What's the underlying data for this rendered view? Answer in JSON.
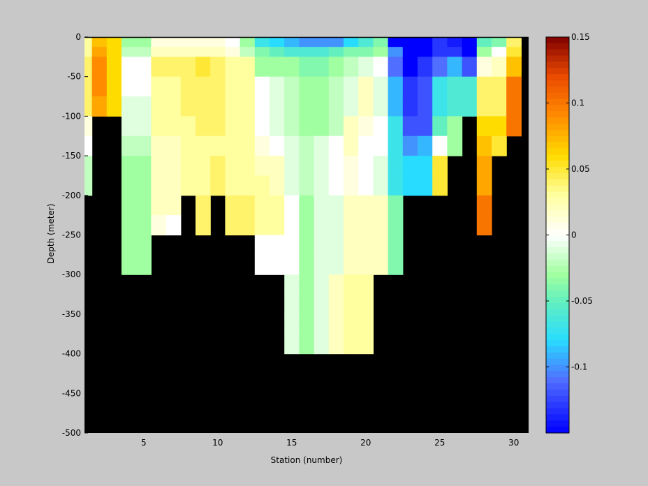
{
  "chart_data": {
    "type": "heatmap",
    "xlabel": "Station (number)",
    "ylabel": "Depth (meter)",
    "xlim": [
      1,
      31
    ],
    "ylim": [
      -500,
      0
    ],
    "xticks": [
      5,
      10,
      15,
      20,
      25,
      30
    ],
    "yticks": [
      0,
      -50,
      -100,
      -150,
      -200,
      -250,
      -300,
      -350,
      -400,
      -450,
      -500
    ],
    "colorbar": {
      "range": [
        -0.15,
        0.15
      ],
      "ticks": [
        0.15,
        0.1,
        0.05,
        0,
        -0.05,
        -0.1
      ],
      "tick_labels": [
        "0.15",
        "0.1",
        "0.05",
        "0",
        "-0.05",
        "-0.1"
      ],
      "colormap": "jet-with-white-center"
    },
    "mask_color": "#000000",
    "stations": [
      2,
      3,
      4,
      5,
      6,
      7,
      8,
      9,
      10,
      11,
      12,
      13,
      14,
      15,
      16,
      17,
      18,
      19,
      20,
      21,
      22,
      23,
      24,
      25,
      26,
      27,
      28,
      29,
      30
    ],
    "depth_bins": [
      0,
      -12.5,
      -25,
      -50,
      -75,
      -100,
      -125,
      -150,
      -175,
      -200,
      -225,
      -250,
      -275,
      -300,
      -325,
      -350,
      -375,
      -400,
      -425,
      -450,
      -475,
      -500
    ],
    "columns": [
      {
        "station": 1,
        "bottom": -200,
        "values": [
          0.03,
          0.03,
          0.04,
          0.04,
          0.04,
          0.01,
          0.0,
          -0.02,
          -0.02
        ]
      },
      {
        "station": 2,
        "bottom": -100,
        "values": [
          0.07,
          0.08,
          0.09,
          0.09,
          0.08
        ]
      },
      {
        "station": 3,
        "bottom": -100,
        "values": [
          0.06,
          0.06,
          0.06,
          0.06,
          0.06
        ]
      },
      {
        "station": 4,
        "bottom": -300,
        "values": [
          -0.03,
          -0.02,
          0.0,
          0.0,
          -0.01,
          -0.01,
          -0.02,
          -0.03,
          -0.03,
          -0.03,
          -0.03,
          -0.03,
          -0.03
        ]
      },
      {
        "station": 5,
        "bottom": -300,
        "values": [
          -0.03,
          -0.02,
          0.0,
          0.0,
          -0.01,
          -0.01,
          -0.02,
          -0.03,
          -0.03,
          -0.03,
          -0.03,
          -0.03,
          -0.03
        ]
      },
      {
        "station": 6,
        "bottom": -250,
        "values": [
          0.01,
          0.02,
          0.04,
          0.03,
          0.03,
          0.03,
          0.02,
          0.02,
          0.02,
          0.02,
          0.01
        ]
      },
      {
        "station": 7,
        "bottom": -250,
        "values": [
          0.01,
          0.02,
          0.04,
          0.03,
          0.03,
          0.03,
          0.02,
          0.02,
          0.02,
          0.02,
          0.0
        ]
      },
      {
        "station": 8,
        "bottom": -200,
        "values": [
          0.01,
          0.02,
          0.04,
          0.04,
          0.04,
          0.03,
          0.03,
          0.03,
          0.03
        ]
      },
      {
        "station": 9,
        "bottom": -250,
        "values": [
          0.01,
          0.02,
          0.05,
          0.04,
          0.04,
          0.04,
          0.03,
          0.03,
          0.03,
          0.04,
          0.04
        ]
      },
      {
        "station": 10,
        "bottom": -200,
        "values": [
          0.01,
          0.02,
          0.04,
          0.04,
          0.04,
          0.04,
          0.03,
          0.04,
          0.04
        ]
      },
      {
        "station": 11,
        "bottom": -250,
        "values": [
          0.0,
          0.01,
          0.03,
          0.03,
          0.03,
          0.03,
          0.03,
          0.03,
          0.03,
          0.04,
          0.04
        ]
      },
      {
        "station": 12,
        "bottom": -250,
        "values": [
          -0.03,
          -0.02,
          0.03,
          0.03,
          0.03,
          0.03,
          0.03,
          0.03,
          0.03,
          0.04,
          0.04
        ]
      },
      {
        "station": 13,
        "bottom": -300,
        "values": [
          -0.07,
          -0.04,
          -0.03,
          0.0,
          0.0,
          0.0,
          0.01,
          0.02,
          0.03,
          0.03,
          0.03,
          0.0,
          0.0
        ]
      },
      {
        "station": 14,
        "bottom": -300,
        "values": [
          -0.08,
          -0.05,
          -0.03,
          -0.01,
          -0.01,
          -0.01,
          0.0,
          0.02,
          0.02,
          0.03,
          0.03,
          0.0,
          0.0
        ]
      },
      {
        "station": 15,
        "bottom": -400,
        "values": [
          -0.09,
          -0.06,
          -0.03,
          -0.02,
          -0.02,
          -0.02,
          -0.01,
          -0.01,
          -0.01,
          0.0,
          0.0,
          0.0,
          0.0,
          -0.01,
          -0.01,
          -0.01,
          -0.01
        ]
      },
      {
        "station": 16,
        "bottom": -400,
        "values": [
          -0.1,
          -0.06,
          -0.04,
          -0.03,
          -0.03,
          -0.03,
          -0.02,
          -0.02,
          -0.02,
          -0.03,
          -0.03,
          -0.03,
          -0.03,
          -0.03,
          -0.03,
          -0.03,
          -0.03
        ]
      },
      {
        "station": 17,
        "bottom": -400,
        "values": [
          -0.1,
          -0.06,
          -0.04,
          -0.03,
          -0.03,
          -0.03,
          -0.01,
          -0.01,
          -0.01,
          -0.01,
          -0.01,
          -0.01,
          -0.01,
          -0.01,
          -0.01,
          -0.01,
          -0.01
        ]
      },
      {
        "station": 18,
        "bottom": -400,
        "values": [
          -0.1,
          -0.05,
          -0.03,
          -0.02,
          -0.02,
          -0.02,
          0.0,
          0.0,
          0.0,
          -0.01,
          -0.01,
          -0.01,
          -0.01,
          0.02,
          0.02,
          0.02,
          0.02
        ]
      },
      {
        "station": 19,
        "bottom": -400,
        "values": [
          -0.08,
          -0.04,
          -0.02,
          -0.01,
          -0.01,
          0.02,
          0.02,
          0.01,
          0.01,
          0.02,
          0.02,
          0.02,
          0.02,
          0.03,
          0.03,
          0.03,
          0.03
        ]
      },
      {
        "station": 20,
        "bottom": -400,
        "values": [
          -0.06,
          -0.04,
          -0.01,
          0.02,
          0.02,
          0.01,
          0.0,
          0.0,
          0.0,
          0.02,
          0.02,
          0.02,
          0.02,
          0.03,
          0.03,
          0.03,
          0.03
        ]
      },
      {
        "station": 21,
        "bottom": -300,
        "values": [
          -0.04,
          -0.03,
          0.0,
          -0.01,
          -0.01,
          0.0,
          0.0,
          -0.01,
          -0.01,
          0.02,
          0.02,
          0.02,
          0.02
        ]
      },
      {
        "station": 22,
        "bottom": -300,
        "values": [
          -0.15,
          -0.1,
          -0.11,
          -0.09,
          -0.09,
          -0.07,
          -0.07,
          -0.07,
          -0.07,
          -0.04,
          -0.04,
          -0.04,
          -0.04
        ]
      },
      {
        "station": 23,
        "bottom": -200,
        "values": [
          -0.15,
          -0.15,
          -0.15,
          -0.13,
          -0.13,
          -0.12,
          -0.1,
          -0.08,
          -0.08
        ]
      },
      {
        "station": 24,
        "bottom": -200,
        "values": [
          -0.15,
          -0.15,
          -0.13,
          -0.12,
          -0.12,
          -0.12,
          -0.09,
          -0.08,
          -0.08
        ]
      },
      {
        "station": 25,
        "bottom": -200,
        "values": [
          -0.13,
          -0.13,
          -0.11,
          -0.07,
          -0.07,
          -0.05,
          0.0,
          0.05,
          0.05
        ]
      },
      {
        "station": 26,
        "bottom": -150,
        "values": [
          -0.14,
          -0.13,
          -0.09,
          -0.06,
          -0.06,
          -0.03,
          -0.03
        ]
      },
      {
        "station": 27,
        "bottom": -100,
        "values": [
          -0.15,
          -0.15,
          -0.12,
          -0.06,
          -0.06
        ]
      },
      {
        "station": 28,
        "bottom": -250,
        "values": [
          -0.05,
          -0.03,
          0.01,
          0.04,
          0.04,
          0.06,
          0.07,
          0.08,
          0.08,
          0.1,
          0.1
        ]
      },
      {
        "station": 29,
        "bottom": -150,
        "values": [
          -0.04,
          0.0,
          0.02,
          0.04,
          0.04,
          0.06,
          0.05
        ]
      },
      {
        "station": 30,
        "bottom": -125,
        "values": [
          0.04,
          0.05,
          0.07,
          0.1,
          0.1,
          0.1
        ]
      }
    ]
  }
}
